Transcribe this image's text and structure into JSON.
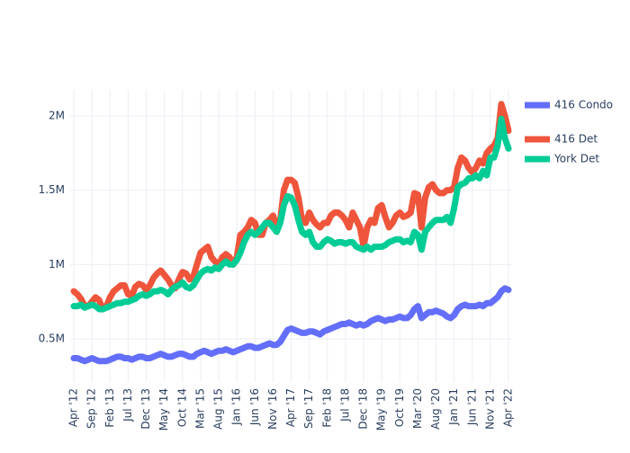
{
  "chart_data": {
    "type": "line",
    "x": [
      "2012-04",
      "2012-05",
      "2012-06",
      "2012-07",
      "2012-08",
      "2012-09",
      "2012-10",
      "2012-11",
      "2012-12",
      "2013-01",
      "2013-02",
      "2013-03",
      "2013-04",
      "2013-05",
      "2013-06",
      "2013-07",
      "2013-08",
      "2013-09",
      "2013-10",
      "2013-11",
      "2013-12",
      "2014-01",
      "2014-02",
      "2014-03",
      "2014-04",
      "2014-05",
      "2014-06",
      "2014-07",
      "2014-08",
      "2014-09",
      "2014-10",
      "2014-11",
      "2014-12",
      "2015-01",
      "2015-02",
      "2015-03",
      "2015-04",
      "2015-05",
      "2015-06",
      "2015-07",
      "2015-08",
      "2015-09",
      "2015-10",
      "2015-11",
      "2015-12",
      "2016-01",
      "2016-02",
      "2016-03",
      "2016-04",
      "2016-05",
      "2016-06",
      "2016-07",
      "2016-08",
      "2016-09",
      "2016-10",
      "2016-11",
      "2016-12",
      "2017-01",
      "2017-02",
      "2017-03",
      "2017-04",
      "2017-05",
      "2017-06",
      "2017-07",
      "2017-08",
      "2017-09",
      "2017-10",
      "2017-11",
      "2017-12",
      "2018-01",
      "2018-02",
      "2018-03",
      "2018-04",
      "2018-05",
      "2018-06",
      "2018-07",
      "2018-08",
      "2018-09",
      "2018-10",
      "2018-11",
      "2018-12",
      "2019-01",
      "2019-02",
      "2019-03",
      "2019-04",
      "2019-05",
      "2019-06",
      "2019-07",
      "2019-08",
      "2019-09",
      "2019-10",
      "2019-11",
      "2019-12",
      "2020-01",
      "2020-02",
      "2020-03",
      "2020-04",
      "2020-05",
      "2020-06",
      "2020-07",
      "2020-08",
      "2020-09",
      "2020-10",
      "2020-11",
      "2020-12",
      "2021-01",
      "2021-02",
      "2021-03",
      "2021-04",
      "2021-05",
      "2021-06",
      "2021-07",
      "2021-08",
      "2021-09",
      "2021-10",
      "2021-11",
      "2021-12",
      "2022-01",
      "2022-02",
      "2022-03",
      "2022-04"
    ],
    "series": [
      {
        "name": "416 Condo",
        "color": "#636efa",
        "values": [
          370000,
          370000,
          360000,
          350000,
          360000,
          370000,
          360000,
          350000,
          350000,
          350000,
          360000,
          370000,
          380000,
          380000,
          370000,
          370000,
          360000,
          370000,
          380000,
          380000,
          370000,
          370000,
          380000,
          390000,
          400000,
          390000,
          380000,
          380000,
          390000,
          400000,
          400000,
          390000,
          380000,
          380000,
          400000,
          410000,
          420000,
          410000,
          400000,
          410000,
          420000,
          420000,
          430000,
          420000,
          410000,
          420000,
          430000,
          440000,
          450000,
          450000,
          440000,
          440000,
          450000,
          460000,
          470000,
          460000,
          460000,
          480000,
          520000,
          560000,
          570000,
          560000,
          550000,
          540000,
          540000,
          550000,
          550000,
          540000,
          530000,
          550000,
          560000,
          570000,
          580000,
          590000,
          600000,
          600000,
          610000,
          600000,
          590000,
          600000,
          590000,
          600000,
          620000,
          630000,
          640000,
          630000,
          620000,
          630000,
          630000,
          640000,
          650000,
          640000,
          640000,
          660000,
          700000,
          720000,
          640000,
          660000,
          680000,
          680000,
          690000,
          680000,
          670000,
          650000,
          640000,
          660000,
          700000,
          720000,
          730000,
          720000,
          720000,
          720000,
          730000,
          720000,
          740000,
          740000,
          760000,
          780000,
          820000,
          840000,
          830000
        ]
      },
      {
        "name": "416 Det",
        "color": "#ef553b",
        "values": [
          820000,
          800000,
          770000,
          720000,
          720000,
          750000,
          780000,
          760000,
          700000,
          720000,
          780000,
          820000,
          840000,
          860000,
          860000,
          800000,
          790000,
          850000,
          870000,
          860000,
          830000,
          860000,
          910000,
          940000,
          960000,
          930000,
          900000,
          860000,
          840000,
          900000,
          950000,
          940000,
          900000,
          920000,
          1000000,
          1080000,
          1100000,
          1120000,
          1050000,
          1020000,
          1000000,
          1050000,
          1070000,
          1050000,
          1000000,
          1050000,
          1200000,
          1220000,
          1250000,
          1300000,
          1280000,
          1200000,
          1200000,
          1280000,
          1300000,
          1330000,
          1250000,
          1300000,
          1500000,
          1570000,
          1570000,
          1550000,
          1450000,
          1300000,
          1280000,
          1350000,
          1300000,
          1270000,
          1250000,
          1280000,
          1280000,
          1330000,
          1350000,
          1350000,
          1330000,
          1300000,
          1250000,
          1350000,
          1300000,
          1250000,
          1120000,
          1250000,
          1300000,
          1280000,
          1380000,
          1400000,
          1320000,
          1250000,
          1280000,
          1330000,
          1350000,
          1320000,
          1330000,
          1350000,
          1480000,
          1470000,
          1250000,
          1450000,
          1520000,
          1540000,
          1500000,
          1480000,
          1480000,
          1500000,
          1500000,
          1520000,
          1650000,
          1720000,
          1700000,
          1650000,
          1620000,
          1650000,
          1700000,
          1680000,
          1750000,
          1780000,
          1800000,
          1850000,
          2080000,
          2000000,
          1900000
        ]
      },
      {
        "name": "York Det",
        "color": "#00cc96",
        "values": [
          720000,
          720000,
          730000,
          710000,
          720000,
          730000,
          720000,
          700000,
          700000,
          710000,
          720000,
          730000,
          740000,
          740000,
          750000,
          750000,
          760000,
          770000,
          790000,
          800000,
          790000,
          800000,
          820000,
          820000,
          830000,
          820000,
          800000,
          830000,
          850000,
          860000,
          880000,
          850000,
          840000,
          860000,
          900000,
          940000,
          960000,
          970000,
          960000,
          980000,
          970000,
          1000000,
          1020000,
          1000000,
          1000000,
          1030000,
          1080000,
          1150000,
          1200000,
          1220000,
          1200000,
          1220000,
          1250000,
          1280000,
          1280000,
          1250000,
          1220000,
          1280000,
          1400000,
          1460000,
          1450000,
          1400000,
          1300000,
          1220000,
          1200000,
          1220000,
          1150000,
          1120000,
          1120000,
          1150000,
          1170000,
          1160000,
          1140000,
          1150000,
          1150000,
          1140000,
          1150000,
          1150000,
          1120000,
          1110000,
          1100000,
          1120000,
          1100000,
          1120000,
          1120000,
          1120000,
          1130000,
          1150000,
          1160000,
          1170000,
          1170000,
          1150000,
          1160000,
          1150000,
          1220000,
          1200000,
          1100000,
          1220000,
          1250000,
          1280000,
          1300000,
          1300000,
          1300000,
          1320000,
          1280000,
          1380000,
          1520000,
          1540000,
          1550000,
          1580000,
          1580000,
          1600000,
          1580000,
          1630000,
          1600000,
          1720000,
          1720000,
          1800000,
          1980000,
          1850000,
          1780000
        ]
      }
    ],
    "xlim": [
      "2012-04",
      "2022-04"
    ],
    "xticks": [
      {
        "value": "2012-04",
        "label": "Apr '12"
      },
      {
        "value": "2012-09",
        "label": "Sep '12"
      },
      {
        "value": "2013-02",
        "label": "Feb '13"
      },
      {
        "value": "2013-07",
        "label": "Jul '13"
      },
      {
        "value": "2013-12",
        "label": "Dec '13"
      },
      {
        "value": "2014-05",
        "label": "May '14"
      },
      {
        "value": "2014-10",
        "label": "Oct '14"
      },
      {
        "value": "2015-03",
        "label": "Mar '15"
      },
      {
        "value": "2015-08",
        "label": "Aug '15"
      },
      {
        "value": "2016-01",
        "label": "Jan '16"
      },
      {
        "value": "2016-06",
        "label": "Jun '16"
      },
      {
        "value": "2016-11",
        "label": "Nov '16"
      },
      {
        "value": "2017-04",
        "label": "Apr '17"
      },
      {
        "value": "2017-09",
        "label": "Sep '17"
      },
      {
        "value": "2018-02",
        "label": "Feb '18"
      },
      {
        "value": "2018-07",
        "label": "Jul '18"
      },
      {
        "value": "2018-12",
        "label": "Dec '18"
      },
      {
        "value": "2019-05",
        "label": "May '19"
      },
      {
        "value": "2019-10",
        "label": "Oct '19"
      },
      {
        "value": "2020-03",
        "label": "Mar '20"
      },
      {
        "value": "2020-08",
        "label": "Aug '20"
      },
      {
        "value": "2021-01",
        "label": "Jan '21"
      },
      {
        "value": "2021-06",
        "label": "Jun '21"
      },
      {
        "value": "2021-11",
        "label": "Nov '21"
      },
      {
        "value": "2022-04",
        "label": "Apr '22"
      }
    ],
    "ylim": [
      210000,
      2175000
    ],
    "yticks": [
      {
        "value": 500000,
        "label": "0.5M"
      },
      {
        "value": 1000000,
        "label": "1M"
      },
      {
        "value": 1500000,
        "label": "1.5M"
      },
      {
        "value": 2000000,
        "label": "2M"
      }
    ],
    "grid": true
  }
}
